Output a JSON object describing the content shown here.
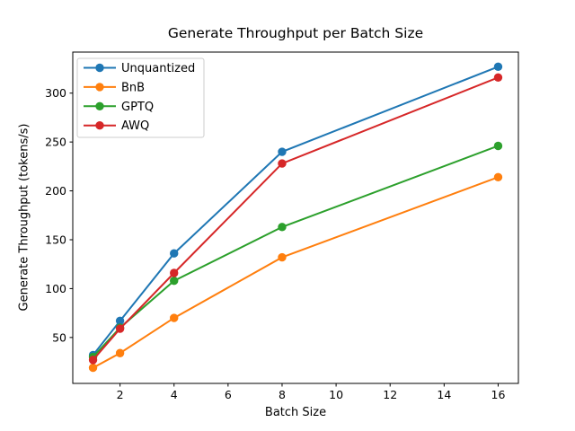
{
  "chart_data": {
    "type": "line",
    "title": "Generate Throughput per Batch Size",
    "xlabel": "Batch Size",
    "ylabel": "Generate Throughput (tokens/s)",
    "x": [
      1,
      2,
      4,
      8,
      16
    ],
    "series": [
      {
        "name": "Unquantized",
        "color": "#1f77b4",
        "values": [
          32,
          67,
          136,
          240,
          327
        ]
      },
      {
        "name": "BnB",
        "color": "#ff7f0e",
        "values": [
          19,
          34,
          70,
          132,
          214
        ]
      },
      {
        "name": "GPTQ",
        "color": "#2ca02c",
        "values": [
          30,
          60,
          108,
          163,
          246
        ]
      },
      {
        "name": "AWQ",
        "color": "#d62728",
        "values": [
          27,
          59,
          116,
          228,
          316
        ]
      }
    ],
    "xticks": [
      2,
      4,
      6,
      8,
      10,
      12,
      14,
      16
    ],
    "yticks": [
      50,
      100,
      150,
      200,
      250,
      300
    ],
    "xlim": [
      0.25,
      16.75
    ],
    "ylim": [
      3,
      342
    ],
    "grid": false,
    "marker": "circle",
    "legend": {
      "position": "upper-left",
      "border_color": "#cccccc",
      "background": "#ffffff"
    },
    "axis_color": "#000000",
    "background_color": "#ffffff"
  }
}
